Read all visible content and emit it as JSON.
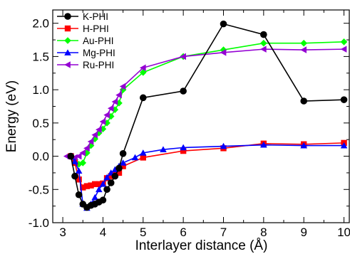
{
  "chart_data": {
    "type": "line",
    "xlabel": "Interlayer distance (Å)",
    "ylabel": "Energy (eV)",
    "xlim": [
      2.75,
      10.15
    ],
    "ylim": [
      -1.0,
      2.2
    ],
    "xticks": [
      3,
      4,
      5,
      6,
      7,
      8,
      9,
      10
    ],
    "yticks": [
      -1.0,
      -0.5,
      0.0,
      0.5,
      1.0,
      1.5,
      2.0
    ],
    "ytick_labels": [
      "-1.0",
      "-0.5",
      "0.0",
      "0.5",
      "1.0",
      "1.5",
      "2.0"
    ],
    "xtick_labels": [
      "3",
      "4",
      "5",
      "6",
      "7",
      "8",
      "9",
      "10"
    ],
    "grid": false,
    "legend_position": "top-left",
    "series": [
      {
        "name": "K-PHI",
        "color": "#000000",
        "marker": "circle",
        "x": [
          3.2,
          3.3,
          3.4,
          3.5,
          3.6,
          3.7,
          3.8,
          3.9,
          4.0,
          4.1,
          4.2,
          4.3,
          4.4,
          4.5,
          5.0,
          6.0,
          7.0,
          8.0,
          9.0,
          10.0
        ],
        "y": [
          0.0,
          -0.3,
          -0.58,
          -0.72,
          -0.77,
          -0.74,
          -0.72,
          -0.69,
          -0.66,
          -0.5,
          -0.4,
          -0.3,
          -0.18,
          0.04,
          0.88,
          0.98,
          1.99,
          1.83,
          0.83,
          0.85
        ]
      },
      {
        "name": "H-PHI",
        "color": "#ff0000",
        "marker": "square",
        "x": [
          3.2,
          3.3,
          3.4,
          3.5,
          3.6,
          3.7,
          3.8,
          3.9,
          4.0,
          4.1,
          4.2,
          4.3,
          4.4,
          4.5,
          5.0,
          6.0,
          7.0,
          8.0,
          9.0,
          10.0
        ],
        "y": [
          0.0,
          -0.1,
          -0.35,
          -0.47,
          -0.45,
          -0.44,
          -0.42,
          -0.42,
          -0.41,
          -0.33,
          -0.3,
          -0.27,
          -0.25,
          -0.15,
          -0.02,
          0.08,
          0.12,
          0.19,
          0.18,
          0.2
        ]
      },
      {
        "name": "Au-PHI",
        "color": "#00ff00",
        "marker": "diamond",
        "x": [
          3.2,
          3.3,
          3.4,
          3.5,
          3.6,
          3.7,
          3.8,
          3.9,
          4.0,
          4.1,
          4.2,
          4.3,
          4.4,
          4.5,
          5.0,
          6.0,
          7.0,
          8.0,
          9.0,
          10.0
        ],
        "y": [
          0.0,
          -0.05,
          -0.12,
          -0.1,
          0.05,
          0.16,
          0.26,
          0.35,
          0.41,
          0.5,
          0.6,
          0.7,
          0.8,
          1.0,
          1.26,
          1.5,
          1.6,
          1.7,
          1.7,
          1.72
        ]
      },
      {
        "name": "Mg-PHI",
        "color": "#0000ff",
        "marker": "triangle-up",
        "x": [
          3.2,
          3.3,
          3.4,
          3.5,
          3.6,
          3.7,
          3.8,
          3.9,
          4.0,
          4.1,
          4.2,
          4.3,
          4.4,
          4.5,
          4.8,
          5.0,
          5.5,
          6.0,
          7.0,
          8.0,
          9.0,
          10.0
        ],
        "y": [
          0.0,
          -0.08,
          -0.22,
          -0.72,
          -0.78,
          -0.72,
          -0.62,
          -0.5,
          -0.42,
          -0.32,
          -0.25,
          -0.2,
          -0.15,
          -0.1,
          -0.02,
          0.05,
          0.1,
          0.13,
          0.15,
          0.17,
          0.16,
          0.16
        ]
      },
      {
        "name": "Ru-PHI",
        "color": "#9400d3",
        "marker": "triangle-left",
        "x": [
          3.1,
          3.2,
          3.3,
          3.4,
          3.5,
          3.6,
          3.7,
          3.8,
          3.9,
          4.0,
          4.1,
          4.2,
          4.3,
          4.4,
          4.5,
          5.0,
          6.0,
          7.0,
          8.0,
          9.0,
          10.0
        ],
        "y": [
          0.0,
          0.0,
          -0.02,
          0.0,
          0.05,
          0.12,
          0.22,
          0.32,
          0.4,
          0.52,
          0.62,
          0.72,
          0.82,
          0.92,
          1.05,
          1.33,
          1.5,
          1.56,
          1.61,
          1.6,
          1.61
        ]
      }
    ]
  }
}
